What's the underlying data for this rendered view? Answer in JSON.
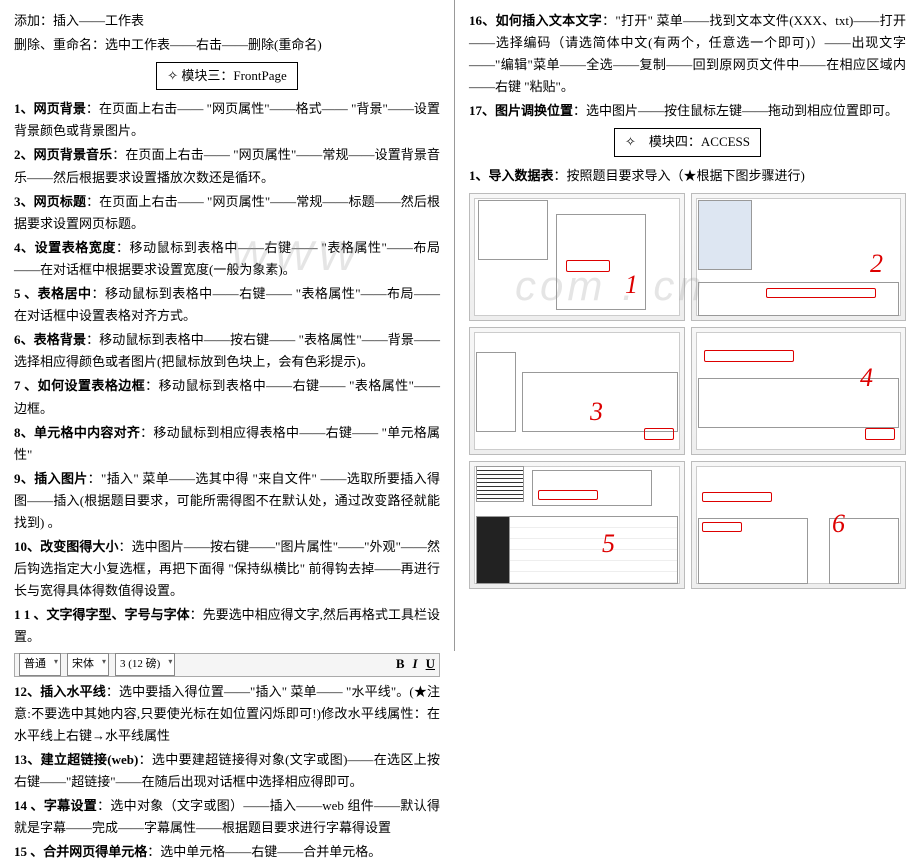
{
  "left": {
    "intro1": "添加：插入——工作表",
    "intro2": "删除、重命名：选中工作表——右击——删除(重命名)",
    "header": "模块三：FrontPage",
    "items": [
      {
        "n": "1、",
        "t": "网页背景",
        "b": "：在页面上右击——  \"网页属性\"——格式——  \"背景\"——设置背景颜色或背景图片。"
      },
      {
        "n": "2、",
        "t": "网页背景音乐",
        "b": "：在页面上右击——  \"网页属性\"——常规——设置背景音乐——然后根据要求设置播放次数还是循环。"
      },
      {
        "n": "3、",
        "t": "网页标题",
        "b": "：在页面上右击——  \"网页属性\"——常规——标题——然后根据要求设置网页标题。"
      },
      {
        "n": "4、",
        "t": "设置表格宽度",
        "b": "：移动鼠标到表格中——右键——  \"表格属性\"——布局——在对话框中根据要求设置宽度(一般为象素)。"
      },
      {
        "n": "5 、",
        "t": "表格居中",
        "b": "：移动鼠标到表格中——右键——  \"表格属性\"——布局——在对话框中设置表格对齐方式。"
      },
      {
        "n": "6、",
        "t": "表格背景",
        "b": "：移动鼠标到表格中——按右键——  \"表格属性\"——背景——选择相应得颜色或者图片(把鼠标放到色块上，会有色彩提示)。"
      },
      {
        "n": "7 、",
        "t": "如何设置表格边框",
        "b": "：移动鼠标到表格中——右键——  \"表格属性\"——边框。"
      },
      {
        "n": "8、",
        "t": "单元格中内容对齐",
        "b": "：移动鼠标到相应得表格中——右键——  \"单元格属性\""
      },
      {
        "n": "9、",
        "t": "插入图片",
        "b": "：\"插入\" 菜单——选其中得 \"来自文件\" ——选取所要插入得图——插入(根据题目要求，可能所需得图不在默认处，通过改变路径就能找到) 。"
      },
      {
        "n": "10、",
        "t": "改变图得大小",
        "b": "：选中图片——按右键——\"图片属性\"——\"外观\"——然后钩选指定大小复选框，再把下面得 \"保持纵横比\" 前得钩去掉——再进行长与宽得具体得数值得设置。"
      },
      {
        "n": "1 1 、",
        "t": "文字得字型、字号与字体",
        "b": "：先要选中相应得文字,然后再格式工具栏设置。"
      }
    ],
    "toolbar": {
      "style": "普通",
      "font": "宋体",
      "size": "3 (12 磅)",
      "b": "B",
      "i": "I",
      "u": "U"
    },
    "items2": [
      {
        "n": "12、",
        "t": "插入水平线",
        "b": "：选中要插入得位置——\"插入\" 菜单——  \"水平线\"。(★注意:不要选中其她内容,只要使光标在如位置闪烁即可!)修改水平线属性：在水平线上右键→水平线属性"
      },
      {
        "n": "13、",
        "t": "建立超链接(web)",
        "b": "：选中要建超链接得对象(文字或图)——在选区上按右键——\"超链接\"——在随后出现对话框中选择相应得即可。"
      },
      {
        "n": "14 、",
        "t": "字幕设置",
        "b": "：选中对象（文字或图）——插入——web 组件——默认得就是字幕——完成——字幕属性——根据题目要求进行字幕得设置"
      },
      {
        "n": "15 、",
        "t": "合并网页得单元格",
        "b": "：选中单元格——右键——合并单元格。"
      }
    ]
  },
  "right": {
    "items_top": [
      {
        "n": "16、",
        "t": "如何插入文本文字",
        "b": "：\"打开\" 菜单——找到文本文件(XXX、txt)——打开——选择编码（请选简体中文(有两个，任意选一个即可)）——出现文字——\"编辑\"菜单——全选——复制——回到原网页文件中——在相应区域内——右键 \"粘贴\"。"
      },
      {
        "n": "17、",
        "t": "图片调换位置",
        "b": "：选中图片——按住鼠标左键——拖动到相应位置即可。"
      }
    ],
    "header": "模块四：ACCESS",
    "item1": {
      "n": "1、",
      "t": "导入数据表",
      "b": "：按照题目要求导入（★根据下图步骤进行)"
    },
    "shots": {
      "s1": {
        "num": "1",
        "numpos": "bottom:12px;left:155px"
      },
      "s2": {
        "num": "2",
        "numpos": "top:48px;right:22px"
      },
      "s3": {
        "num": "3",
        "numpos": "top:62px;left:120px"
      },
      "s4": {
        "num": "4",
        "numpos": "top:28px;right:32px"
      },
      "s5": {
        "num": "5",
        "numpos": "top:60px;left:132px"
      },
      "s6": {
        "num": "6",
        "numpos": "top:40px;right:60px"
      }
    }
  }
}
